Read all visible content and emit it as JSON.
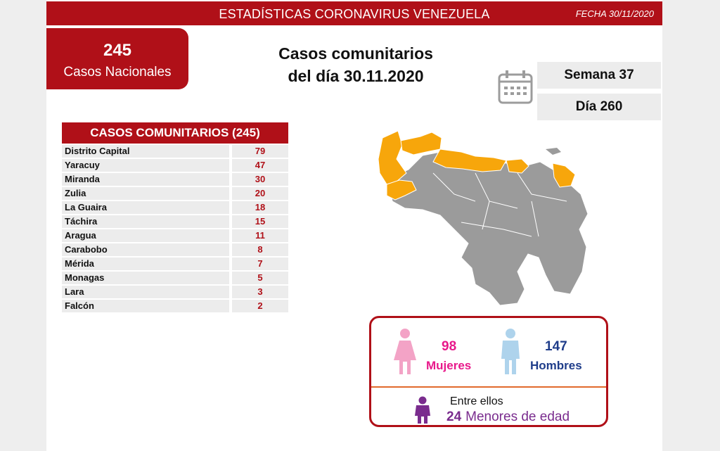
{
  "header": {
    "title": "ESTADÍSTICAS CORONAVIRUS VENEZUELA",
    "date": "FECHA 30/11/2020"
  },
  "national": {
    "count": "245",
    "label": "Casos Nacionales"
  },
  "heading": {
    "line1": "Casos comunitarios",
    "line2": "del día 30.11.2020"
  },
  "calendar": {
    "icon": "calendar-icon",
    "week": "Semana 37",
    "day": "Día 260"
  },
  "table": {
    "title": "CASOS COMUNITARIOS (245)",
    "rows": [
      {
        "name": "Distrito Capital",
        "value": "79"
      },
      {
        "name": "Yaracuy",
        "value": "47"
      },
      {
        "name": "Miranda",
        "value": "30"
      },
      {
        "name": "Zulia",
        "value": "20"
      },
      {
        "name": "La Guaira",
        "value": "18"
      },
      {
        "name": "Táchira",
        "value": "15"
      },
      {
        "name": "Aragua",
        "value": "11"
      },
      {
        "name": "Carabobo",
        "value": "8"
      },
      {
        "name": "Mérida",
        "value": "7"
      },
      {
        "name": "Monagas",
        "value": "5"
      },
      {
        "name": "Lara",
        "value": "3"
      },
      {
        "name": "Falcón",
        "value": "2"
      }
    ]
  },
  "map": {
    "icon": "venezuela-map",
    "highlight_color": "#f7a60b",
    "base_color": "#9b9b9b"
  },
  "stats": {
    "women_count": "98",
    "women_label": "Mujeres",
    "women_color": "#f3a3c6",
    "men_count": "147",
    "men_label": "Hombres",
    "men_color": "#aed3ec",
    "minors_prefix": "Entre ellos",
    "minors_count": "24",
    "minors_label": "Menores de edad",
    "minors_color": "#7a2c8e"
  },
  "colors": {
    "brand_red": "#b01018"
  }
}
